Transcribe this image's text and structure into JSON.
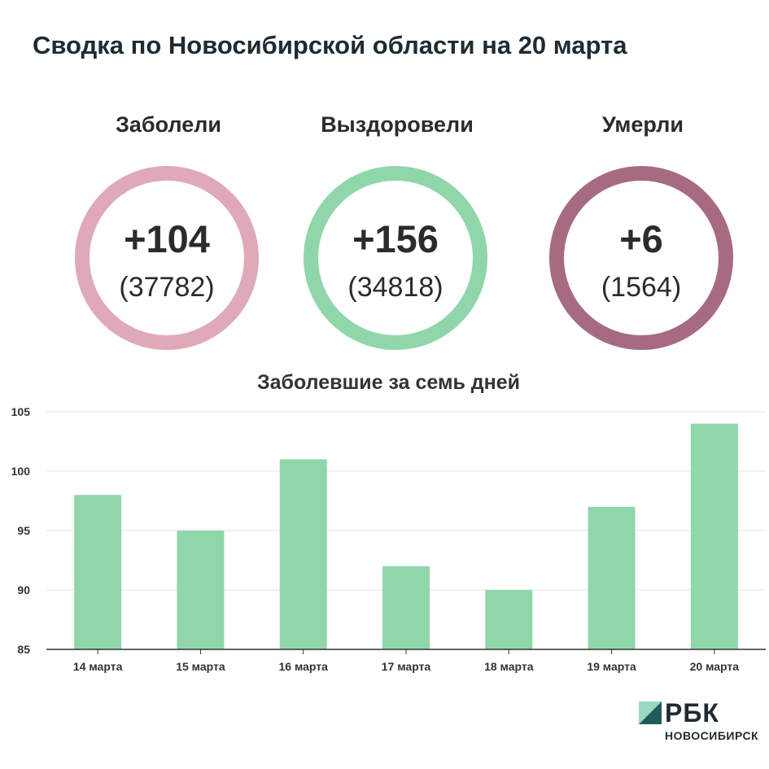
{
  "title": "Сводка по Новосибирской области на 20 марта",
  "stats": [
    {
      "label": "Заболели",
      "delta": "+104",
      "total": "(37782)",
      "color": "#e0a9b8"
    },
    {
      "label": "Выздоровели",
      "delta": "+156",
      "total": "(34818)",
      "color": "#90d6ab"
    },
    {
      "label": "Умерли",
      "delta": "+6",
      "total": "(1564)",
      "color": "#a66b82"
    }
  ],
  "chart_data": {
    "type": "bar",
    "title": "Заболевшие за семь дней",
    "categories": [
      "14 марта",
      "15 марта",
      "16 марта",
      "17 марта",
      "18 марта",
      "19 марта",
      "20 марта"
    ],
    "values": [
      98,
      95,
      101,
      92,
      90,
      97,
      104
    ],
    "ylim": [
      85,
      105
    ],
    "yticks": [
      85,
      90,
      95,
      100,
      105
    ],
    "grid": true,
    "bar_color": "#90d6ab",
    "xlabel": "",
    "ylabel": ""
  },
  "logo": {
    "name": "РБК",
    "sub": "НОВОСИБИРСК",
    "colors": [
      "#9ad8c0",
      "#1f5c5a"
    ]
  }
}
